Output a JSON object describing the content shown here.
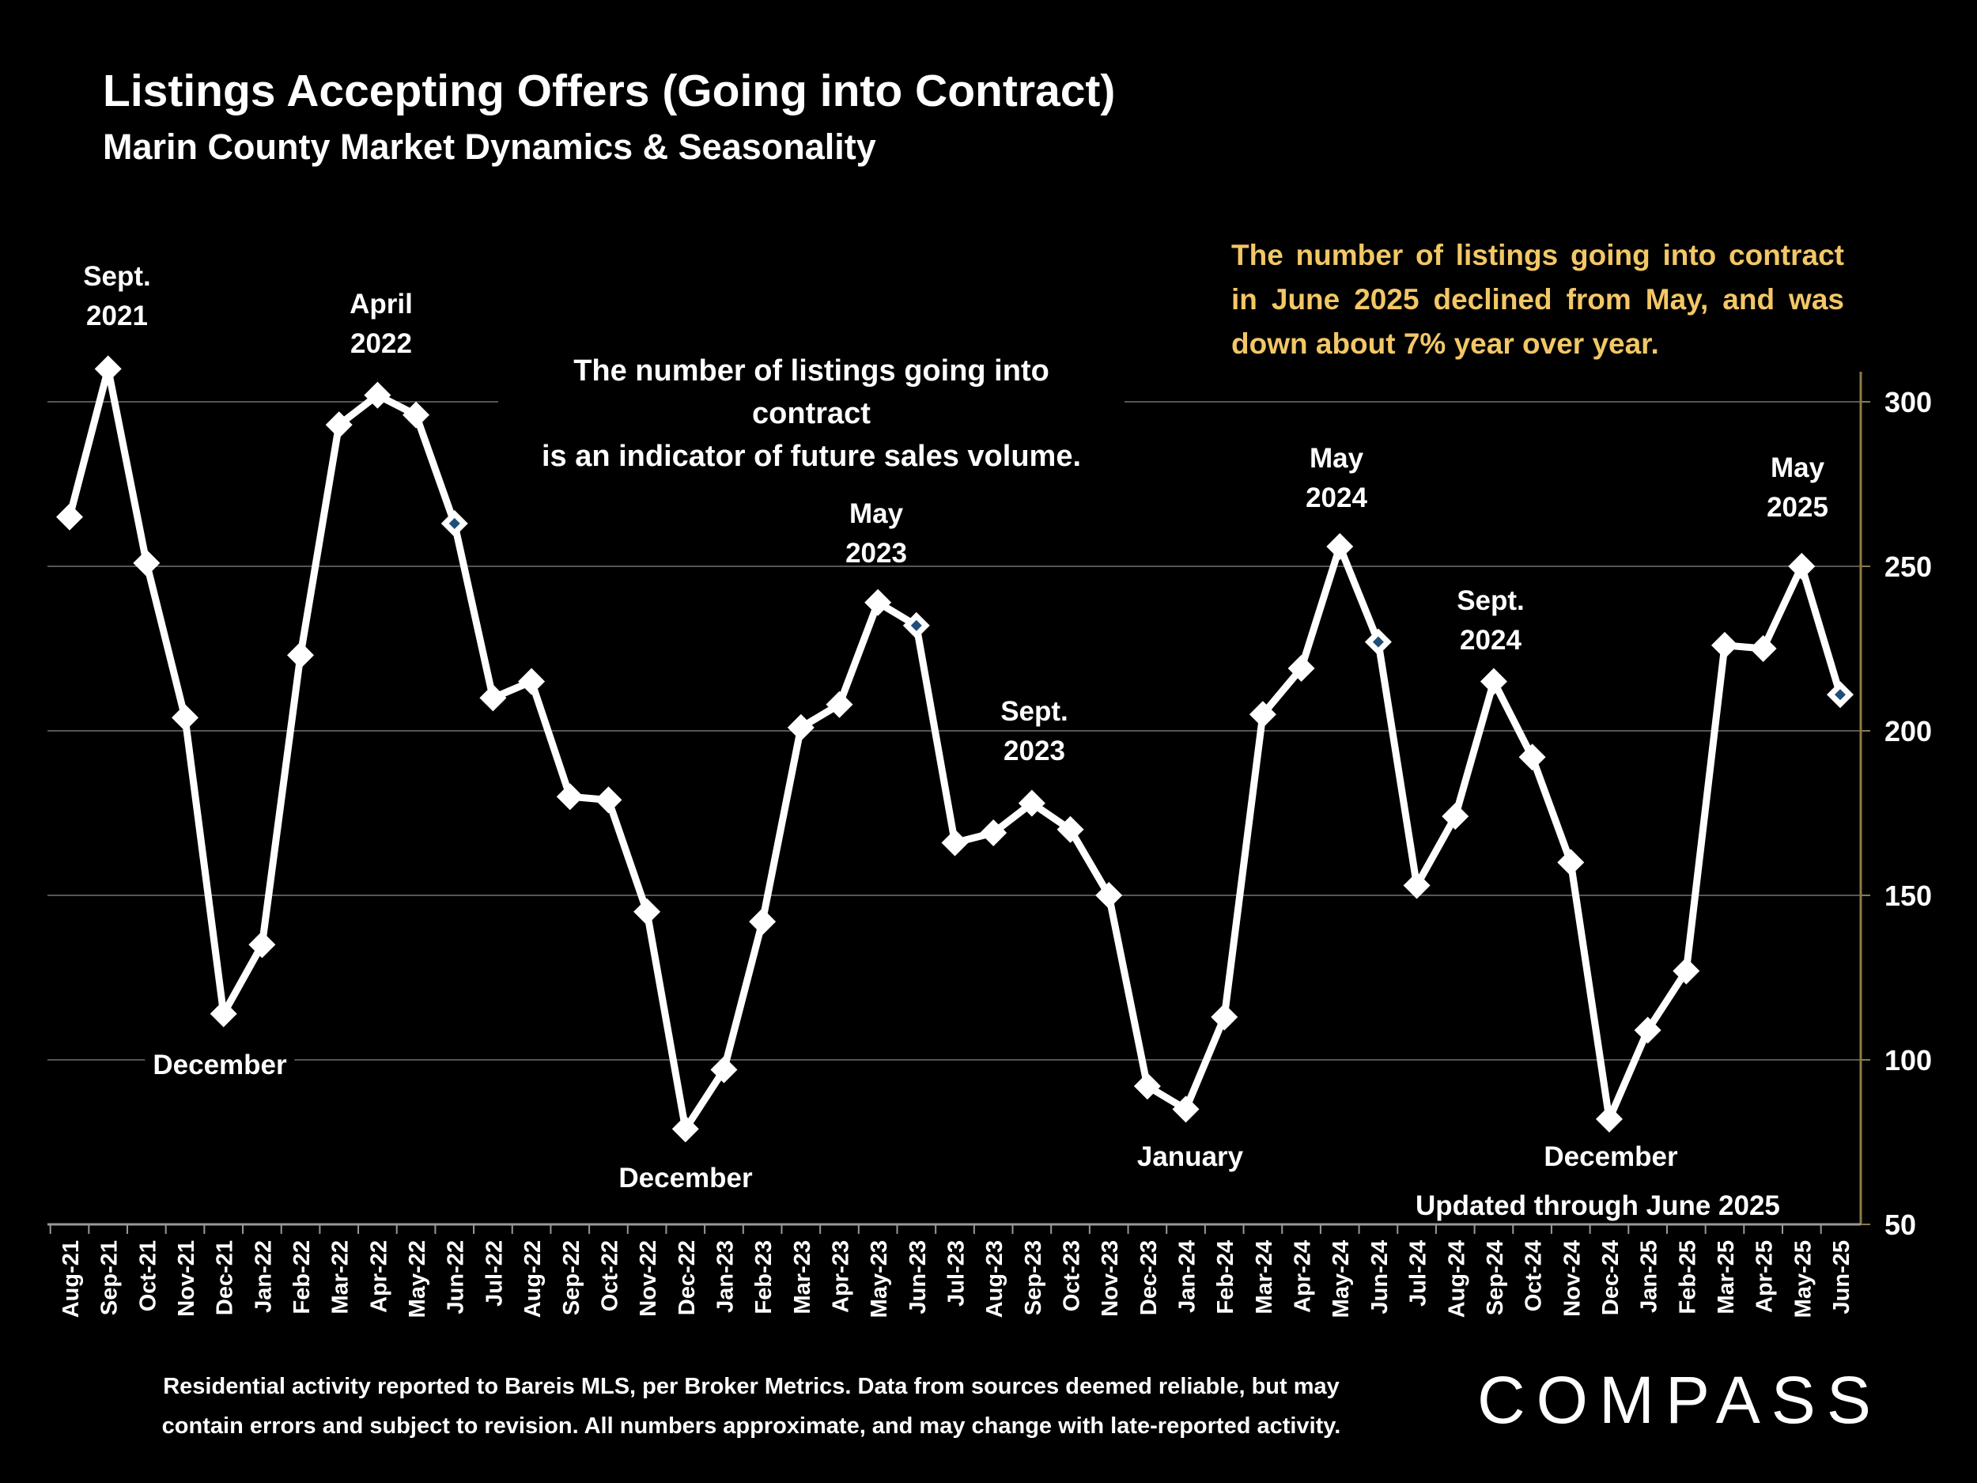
{
  "header": {
    "title": "Listings Accepting Offers (Going into Contract)",
    "subtitle": "Marin County Market Dynamics & Seasonality"
  },
  "notes": {
    "gold": "The number of listings going into contract in June 2025 declined from May, and was down about 7% year over year.",
    "white_line1": "The number of listings going into contract",
    "white_line2": "is an indicator of future sales volume.",
    "updated": "Updated through June 2025"
  },
  "annotations": [
    {
      "id": "sept-2021",
      "lines": [
        "Sept.",
        "2021"
      ]
    },
    {
      "id": "april-2022",
      "lines": [
        "April",
        "2022"
      ]
    },
    {
      "id": "december-2021",
      "lines": [
        "December"
      ]
    },
    {
      "id": "may-2023",
      "lines": [
        "May",
        "2023"
      ]
    },
    {
      "id": "sept-2023",
      "lines": [
        "Sept.",
        "2023"
      ]
    },
    {
      "id": "december-2022",
      "lines": [
        "December"
      ]
    },
    {
      "id": "january-2024",
      "lines": [
        "January"
      ]
    },
    {
      "id": "may-2024",
      "lines": [
        "May",
        "2024"
      ]
    },
    {
      "id": "sept-2024",
      "lines": [
        "Sept.",
        "2024"
      ]
    },
    {
      "id": "december-2024",
      "lines": [
        "December"
      ]
    },
    {
      "id": "may-2025",
      "lines": [
        "May",
        "2025"
      ]
    }
  ],
  "footer": {
    "line1": "Residential activity reported to Bareis MLS, per Broker Metrics. Data from sources deemed reliable, but may",
    "line2": "contain errors and subject to revision. All numbers approximate, and may change with late-reported activity."
  },
  "logo": "COMPASS",
  "colors": {
    "background": "#000000",
    "line": "#ffffff",
    "accent_note": "#f2c766",
    "marker_center": "#1f4e79",
    "axis": "#8a7a4a"
  },
  "chart_data": {
    "type": "line",
    "title": "Listings Accepting Offers (Going into Contract)",
    "xlabel": "",
    "ylabel": "",
    "ylim": [
      50,
      300
    ],
    "yticks": [
      50,
      100,
      150,
      200,
      250,
      300
    ],
    "y_axis_side": "right",
    "grid": true,
    "categories": [
      "Aug-21",
      "Sep-21",
      "Oct-21",
      "Nov-21",
      "Dec-21",
      "Jan-22",
      "Feb-22",
      "Mar-22",
      "Apr-22",
      "May-22",
      "Jun-22",
      "Jul-22",
      "Aug-22",
      "Sep-22",
      "Oct-22",
      "Nov-22",
      "Dec-22",
      "Jan-23",
      "Feb-23",
      "Mar-23",
      "Apr-23",
      "May-23",
      "Jun-23",
      "Jul-23",
      "Aug-23",
      "Sep-23",
      "Oct-23",
      "Nov-23",
      "Dec-23",
      "Jan-24",
      "Feb-24",
      "Mar-24",
      "Apr-24",
      "May-24",
      "Jun-24",
      "Jul-24",
      "Aug-24",
      "Sep-24",
      "Oct-24",
      "Nov-24",
      "Dec-24",
      "Jan-25",
      "Feb-25",
      "Mar-25",
      "Apr-25",
      "May-25",
      "Jun-25"
    ],
    "series": [
      {
        "name": "Listings going into contract",
        "values": [
          265,
          310,
          251,
          204,
          114,
          135,
          223,
          293,
          302,
          296,
          263,
          210,
          215,
          180,
          179,
          145,
          79,
          97,
          142,
          201,
          208,
          239,
          232,
          166,
          169,
          178,
          170,
          150,
          92,
          85,
          113,
          205,
          219,
          256,
          227,
          153,
          174,
          215,
          192,
          160,
          82,
          109,
          127,
          226,
          225,
          250,
          211
        ]
      }
    ],
    "hollow_markers": [
      10,
      22,
      34,
      46
    ]
  }
}
